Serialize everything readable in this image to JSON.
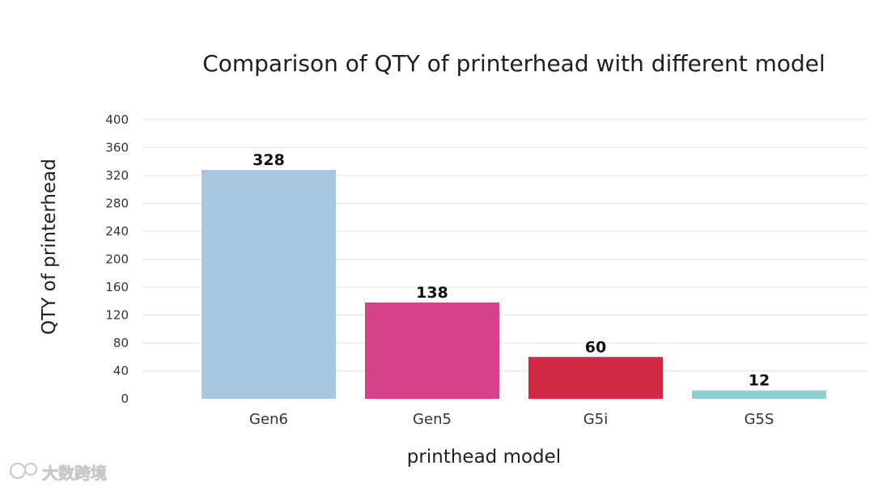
{
  "chart_data": {
    "type": "bar",
    "title": "Comparison of QTY of printerhead with different model",
    "xlabel": "printhead model",
    "ylabel": "QTY of printerhead",
    "categories": [
      "Gen6",
      "Gen5",
      "G5i",
      "G5S"
    ],
    "values": [
      328,
      138,
      60,
      12
    ],
    "data_labels": [
      "328",
      "138",
      "60",
      "12"
    ],
    "colors": [
      "#a7c6df",
      "#d64289",
      "#d02845",
      "#8fd0d4"
    ],
    "ylim": [
      0,
      400
    ],
    "yticks": [
      "0",
      "40",
      "80",
      "120",
      "160",
      "200",
      "240",
      "280",
      "320",
      "360",
      "400"
    ],
    "grid": true,
    "legend": "none"
  },
  "watermark": {
    "text": "大数跨境"
  }
}
